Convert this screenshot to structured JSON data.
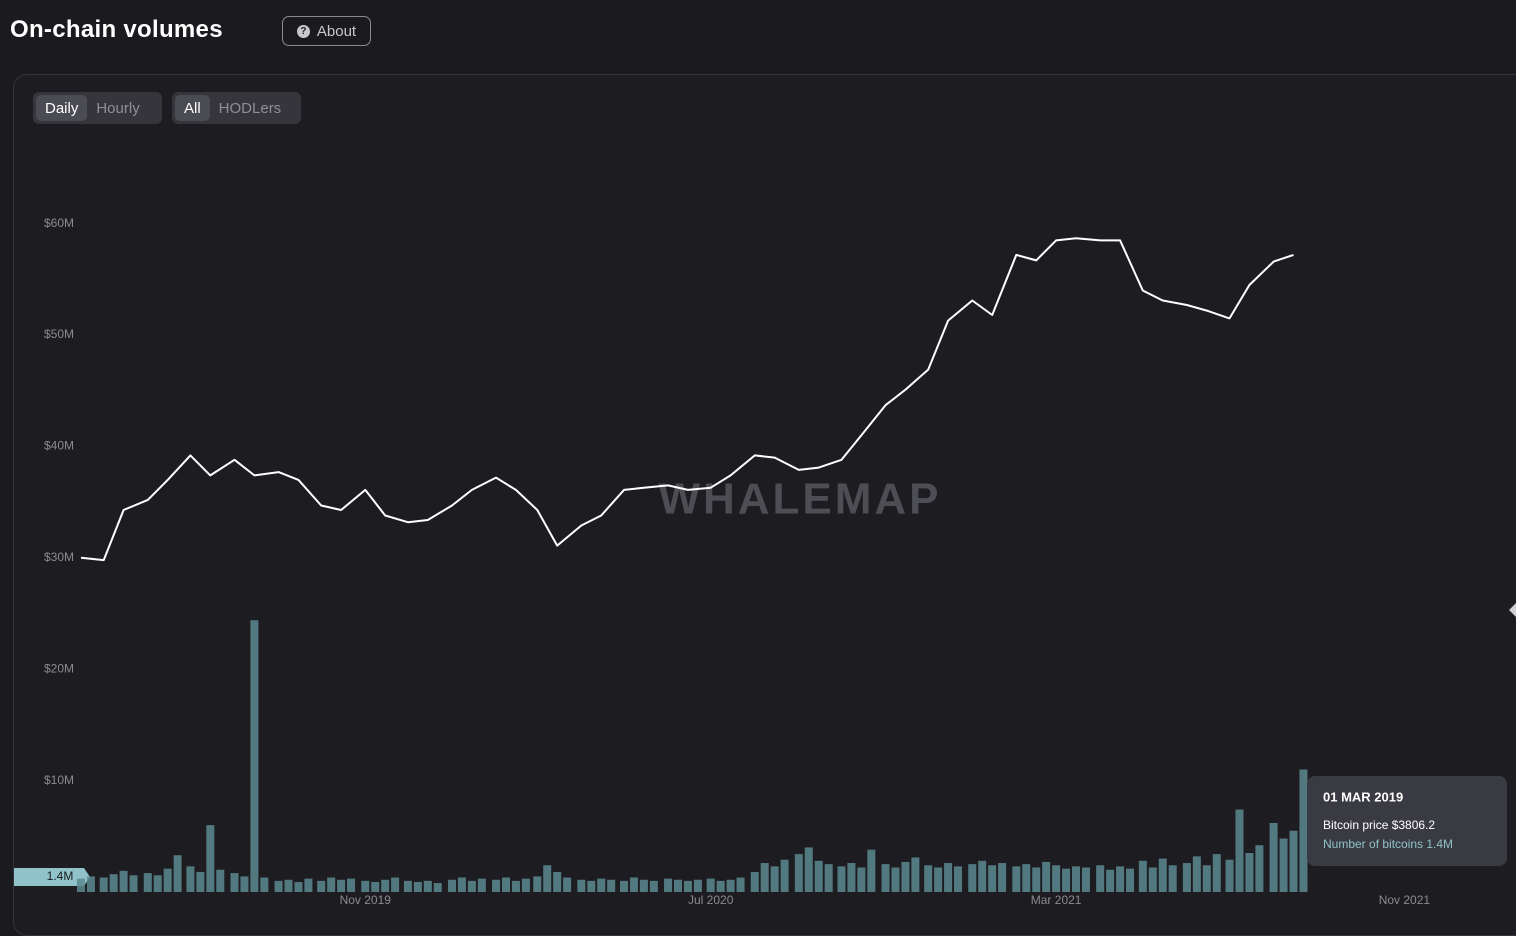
{
  "header": {
    "title": "On-chain volumes",
    "about": "About"
  },
  "controls": {
    "interval": [
      "Daily",
      "Hourly"
    ],
    "filter": [
      "All",
      "HODLers"
    ]
  },
  "watermark": "WHALEMAP",
  "crosshair_label": "1.4M",
  "tooltip": {
    "date": "01 MAR 2019",
    "price": "Bitcoin price $3806.2",
    "count": "Number of bitcoins 1.4M"
  },
  "chart_data": [
    {
      "type": "line",
      "color": "#ffffff",
      "xlim": [
        "2019-03-01",
        "2022-01-15"
      ],
      "xticks": [
        {
          "value": "2019-11-01",
          "label": "Nov 2019"
        },
        {
          "value": "2020-07-01",
          "label": "Jul 2020"
        },
        {
          "value": "2021-03-01",
          "label": "Mar 2021"
        },
        {
          "value": "2021-11-01",
          "label": "Nov 2021"
        }
      ],
      "ylim": [
        0,
        65000000
      ],
      "yticks": [
        {
          "value": 10000000,
          "label": "$10M"
        },
        {
          "value": 20000000,
          "label": "$20M"
        },
        {
          "value": 30000000,
          "label": "$30M"
        },
        {
          "value": 40000000,
          "label": "$40M"
        },
        {
          "value": 50000000,
          "label": "$50M"
        },
        {
          "value": 60000000,
          "label": "$60M"
        }
      ],
      "grid": false,
      "x": [
        "2019-04-15",
        "2019-05-01",
        "2019-05-15",
        "2019-06-01",
        "2019-06-15",
        "2019-07-01",
        "2019-07-15",
        "2019-08-01",
        "2019-08-15",
        "2019-09-01",
        "2019-09-15",
        "2019-10-01",
        "2019-10-15",
        "2019-11-01",
        "2019-11-15",
        "2019-12-01",
        "2019-12-15",
        "2020-01-01",
        "2020-01-15",
        "2020-02-01",
        "2020-02-15",
        "2020-03-01",
        "2020-03-15",
        "2020-04-01",
        "2020-04-15",
        "2020-05-01",
        "2020-05-15",
        "2020-06-01",
        "2020-06-15",
        "2020-07-01",
        "2020-07-15",
        "2020-08-01",
        "2020-08-15",
        "2020-09-01",
        "2020-09-15",
        "2020-10-01",
        "2020-10-15",
        "2020-11-01",
        "2020-11-15",
        "2020-12-01",
        "2020-12-15",
        "2021-01-01",
        "2021-01-15",
        "2021-02-01",
        "2021-02-15",
        "2021-03-01",
        "2021-03-15",
        "2021-04-01",
        "2021-04-15",
        "2021-05-01",
        "2021-05-15",
        "2021-06-01",
        "2021-06-15",
        "2021-07-01",
        "2021-07-15",
        "2021-08-01",
        "2021-08-15"
      ],
      "values": [
        30000000,
        29800000,
        34300000,
        35200000,
        37000000,
        39200000,
        37400000,
        38800000,
        37400000,
        37700000,
        37000000,
        34700000,
        34300000,
        36100000,
        33800000,
        33200000,
        33400000,
        34700000,
        36100000,
        37200000,
        36100000,
        34300000,
        31100000,
        32900000,
        33800000,
        36100000,
        36300000,
        36500000,
        36100000,
        36300000,
        37400000,
        39200000,
        39000000,
        37900000,
        38100000,
        38800000,
        41000000,
        43700000,
        45100000,
        46900000,
        51300000,
        53100000,
        51800000,
        57200000,
        56700000,
        58500000,
        58700000,
        58500000,
        58500000,
        54000000,
        53100000,
        52700000,
        52200000,
        51500000,
        54500000,
        56600000,
        57200000
      ]
    },
    {
      "type": "bar",
      "color": "#5c8a90",
      "x": [
        "2019-04-15",
        "2019-04-22",
        "2019-05-01",
        "2019-05-08",
        "2019-05-15",
        "2019-05-22",
        "2019-06-01",
        "2019-06-08",
        "2019-06-15",
        "2019-06-22",
        "2019-07-01",
        "2019-07-08",
        "2019-07-15",
        "2019-07-22",
        "2019-08-01",
        "2019-08-08",
        "2019-08-15",
        "2019-08-22",
        "2019-09-01",
        "2019-09-08",
        "2019-09-15",
        "2019-09-22",
        "2019-10-01",
        "2019-10-08",
        "2019-10-15",
        "2019-10-22",
        "2019-11-01",
        "2019-11-08",
        "2019-11-15",
        "2019-11-22",
        "2019-12-01",
        "2019-12-08",
        "2019-12-15",
        "2019-12-22",
        "2020-01-01",
        "2020-01-08",
        "2020-01-15",
        "2020-01-22",
        "2020-02-01",
        "2020-02-08",
        "2020-02-15",
        "2020-02-22",
        "2020-03-01",
        "2020-03-08",
        "2020-03-15",
        "2020-03-22",
        "2020-04-01",
        "2020-04-08",
        "2020-04-15",
        "2020-04-22",
        "2020-05-01",
        "2020-05-08",
        "2020-05-15",
        "2020-05-22",
        "2020-06-01",
        "2020-06-08",
        "2020-06-15",
        "2020-06-22",
        "2020-07-01",
        "2020-07-08",
        "2020-07-15",
        "2020-07-22",
        "2020-08-01",
        "2020-08-08",
        "2020-08-15",
        "2020-08-22",
        "2020-09-01",
        "2020-09-08",
        "2020-09-15",
        "2020-09-22",
        "2020-10-01",
        "2020-10-08",
        "2020-10-15",
        "2020-10-22",
        "2020-11-01",
        "2020-11-08",
        "2020-11-15",
        "2020-11-22",
        "2020-12-01",
        "2020-12-08",
        "2020-12-15",
        "2020-12-22",
        "2021-01-01",
        "2021-01-08",
        "2021-01-15",
        "2021-01-22",
        "2021-02-01",
        "2021-02-08",
        "2021-02-15",
        "2021-02-22",
        "2021-03-01",
        "2021-03-08",
        "2021-03-15",
        "2021-03-22",
        "2021-04-01",
        "2021-04-08",
        "2021-04-15",
        "2021-04-22",
        "2021-05-01",
        "2021-05-08",
        "2021-05-15",
        "2021-05-22",
        "2021-06-01",
        "2021-06-08",
        "2021-06-15",
        "2021-06-22",
        "2021-07-01",
        "2021-07-08",
        "2021-07-15",
        "2021-07-22",
        "2021-08-01",
        "2021-08-08",
        "2021-08-15",
        "2021-08-22"
      ],
      "values": [
        1200000,
        1400000,
        1300000,
        1600000,
        1900000,
        1500000,
        1700000,
        1500000,
        2100000,
        3300000,
        2300000,
        1800000,
        6000000,
        2000000,
        1700000,
        1400000,
        24400000,
        1300000,
        1000000,
        1100000,
        900000,
        1200000,
        1000000,
        1300000,
        1100000,
        1200000,
        1000000,
        900000,
        1100000,
        1300000,
        1000000,
        900000,
        1000000,
        800000,
        1100000,
        1300000,
        1000000,
        1200000,
        1100000,
        1300000,
        1000000,
        1200000,
        1400000,
        2400000,
        1800000,
        1300000,
        1100000,
        1000000,
        1200000,
        1100000,
        1000000,
        1300000,
        1100000,
        1000000,
        1200000,
        1100000,
        1000000,
        1100000,
        1200000,
        1000000,
        1100000,
        1300000,
        1800000,
        2600000,
        2300000,
        2900000,
        3400000,
        4000000,
        2800000,
        2500000,
        2300000,
        2600000,
        2200000,
        3800000,
        2500000,
        2200000,
        2700000,
        3100000,
        2400000,
        2200000,
        2600000,
        2300000,
        2500000,
        2800000,
        2400000,
        2600000,
        2300000,
        2500000,
        2200000,
        2700000,
        2400000,
        2100000,
        2300000,
        2200000,
        2400000,
        2000000,
        2300000,
        2100000,
        2800000,
        2200000,
        3000000,
        2400000,
        2600000,
        3200000,
        2400000,
        3400000,
        2900000,
        7400000,
        3500000,
        4200000,
        6200000,
        4800000,
        5500000,
        11000000
      ]
    }
  ]
}
